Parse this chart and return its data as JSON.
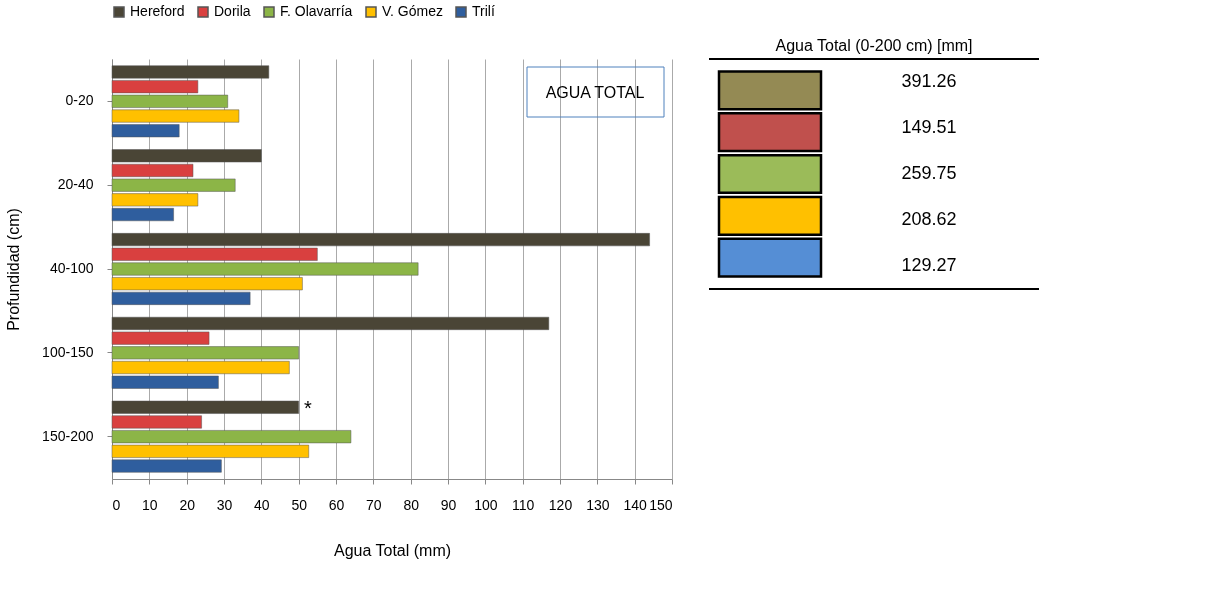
{
  "chart_data": [
    {
      "type": "bar",
      "orientation": "horizontal",
      "xlabel": "Agua Total (mm)",
      "ylabel": "Profundidad (cm)",
      "categories": [
        "0-20",
        "20-40",
        "40-100",
        "100-150",
        "150-200"
      ],
      "series": [
        {
          "name": "Hereford",
          "color": "#4a4536",
          "values": [
            42,
            40,
            144,
            117,
            50
          ]
        },
        {
          "name": "Dorila",
          "color": "#d9403f",
          "values": [
            23,
            21.7,
            55,
            26,
            24
          ]
        },
        {
          "name": "F. Olavarría",
          "color": "#8cb547",
          "values": [
            31,
            33,
            82,
            50,
            64
          ]
        },
        {
          "name": "V. Gómez",
          "color": "#ffc000",
          "values": [
            34,
            23,
            51,
            47.5,
            52.7
          ]
        },
        {
          "name": "Trilí",
          "color": "#2f5e9e",
          "values": [
            18,
            16.5,
            37,
            28.5,
            29.3
          ]
        }
      ],
      "xlim": [
        0,
        150
      ],
      "xticks": [
        0,
        10,
        20,
        30,
        40,
        50,
        60,
        70,
        80,
        90,
        100,
        110,
        120,
        130,
        140,
        150
      ],
      "grid": "x",
      "legend": "top",
      "annotations": [
        "AGUA TOTAL",
        "*"
      ]
    },
    {
      "type": "other",
      "title": "Agua Total (0-200 cm) [mm]",
      "values": [
        391.26,
        149.51,
        259.75,
        208.62,
        129.27
      ],
      "colors": [
        "#948a54",
        "#c0504d",
        "#9bbb59",
        "#ffc000",
        "#558ed5"
      ],
      "data_labels": true
    }
  ]
}
